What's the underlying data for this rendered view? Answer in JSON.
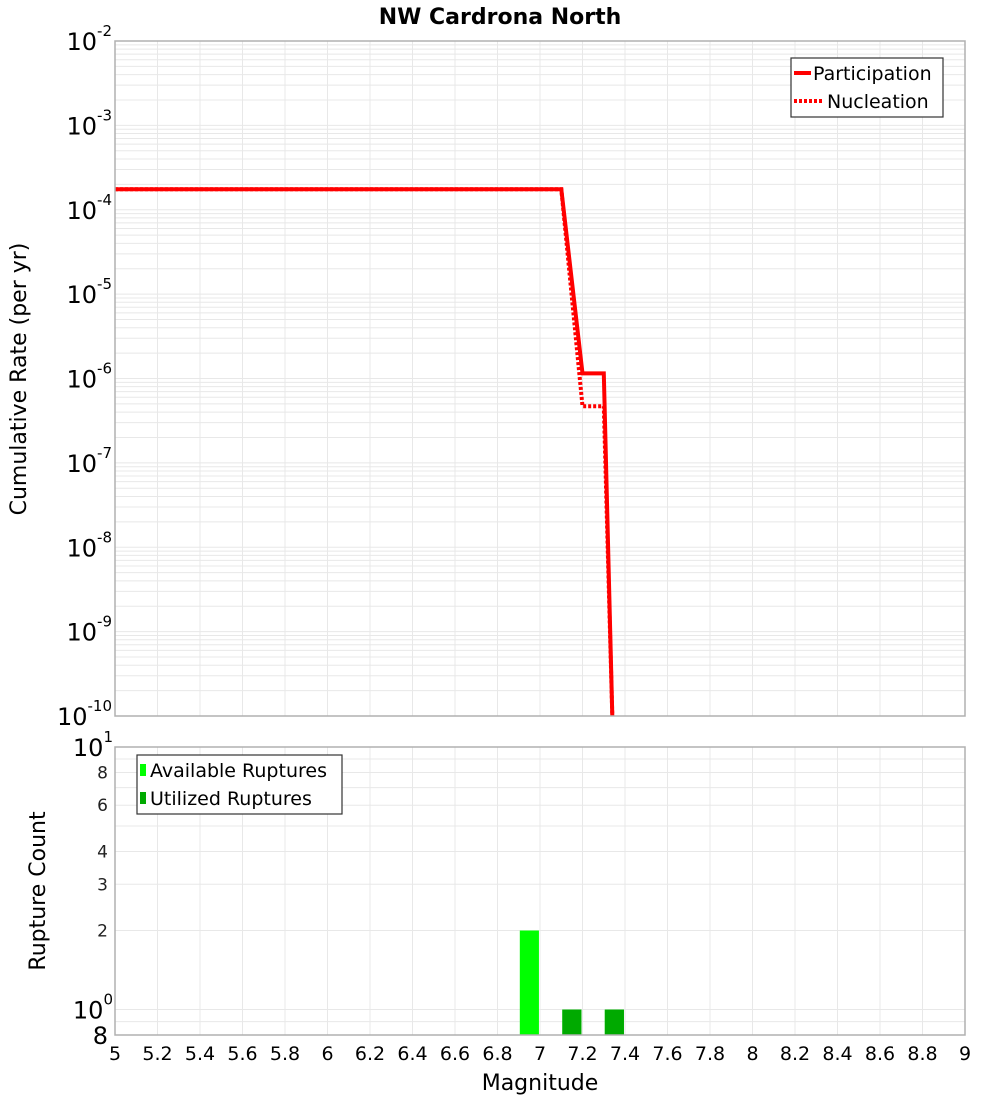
{
  "chart_data": [
    {
      "type": "line",
      "title": "NW Cardrona North",
      "xlabel": "Magnitude",
      "ylabel": "Cumulative Rate (per yr)",
      "xlim": [
        5,
        9
      ],
      "ylim": [
        1e-10,
        0.01
      ],
      "yscale": "log",
      "grid": true,
      "legend_position": "upper right",
      "y_ticks": [
        {
          "base": "10",
          "exp": "-2",
          "value": 0.01
        },
        {
          "base": "10",
          "exp": "-3",
          "value": 0.001
        },
        {
          "base": "10",
          "exp": "-4",
          "value": 0.0001
        },
        {
          "base": "10",
          "exp": "-5",
          "value": 1e-05
        },
        {
          "base": "10",
          "exp": "-6",
          "value": 1e-06
        },
        {
          "base": "10",
          "exp": "-7",
          "value": 1e-07
        },
        {
          "base": "10",
          "exp": "-8",
          "value": 1e-08
        },
        {
          "base": "10",
          "exp": "-9",
          "value": 1e-09
        },
        {
          "base": "10",
          "exp": "-10",
          "value": 1e-10
        }
      ],
      "series": [
        {
          "name": "Participation",
          "style": "solid",
          "color": "#ff0000",
          "x": [
            5.0,
            7.1,
            7.2,
            7.3,
            7.34
          ],
          "y": [
            0.000175,
            0.000175,
            1.15e-06,
            1.15e-06,
            1e-10
          ]
        },
        {
          "name": "Nucleation",
          "style": "dotted",
          "color": "#ff0000",
          "x": [
            5.0,
            7.1,
            7.2,
            7.3,
            7.34
          ],
          "y": [
            0.000175,
            0.000175,
            4.7e-07,
            4.7e-07,
            1e-10
          ]
        }
      ]
    },
    {
      "type": "bar",
      "title": "",
      "xlabel": "Magnitude",
      "ylabel": "Rupture Count",
      "xlim": [
        5,
        9
      ],
      "ylim": [
        0.8,
        10
      ],
      "yscale": "log",
      "grid": true,
      "legend_position": "upper left",
      "x_ticks": [
        "5",
        "5.2",
        "5.4",
        "5.6",
        "5.8",
        "6",
        "6.2",
        "6.4",
        "6.6",
        "6.8",
        "7",
        "7.2",
        "7.4",
        "7.6",
        "7.8",
        "8",
        "8.2",
        "8.4",
        "8.6",
        "8.8",
        "9"
      ],
      "y_ticks": [
        {
          "label": "10",
          "exp": "1",
          "value": 10,
          "major": true
        },
        {
          "label": "8",
          "value": 8,
          "major": false
        },
        {
          "label": "6",
          "value": 6,
          "major": false
        },
        {
          "label": "4",
          "value": 4,
          "major": false
        },
        {
          "label": "3",
          "value": 3,
          "major": false
        },
        {
          "label": "2",
          "value": 2,
          "major": false
        },
        {
          "label": "10",
          "exp": "0",
          "value": 1,
          "major": true
        },
        {
          "label": "8",
          "value": 0.8,
          "major": true
        }
      ],
      "bar_width": 0.09,
      "series": [
        {
          "name": "Available Ruptures",
          "color": "#00ff00",
          "x": [
            6.95,
            7.15,
            7.35
          ],
          "values": [
            2,
            1,
            1
          ]
        },
        {
          "name": "Utilized Ruptures",
          "color": "#00aa00",
          "x": [
            7.15,
            7.35
          ],
          "values": [
            1,
            1
          ]
        }
      ]
    }
  ]
}
